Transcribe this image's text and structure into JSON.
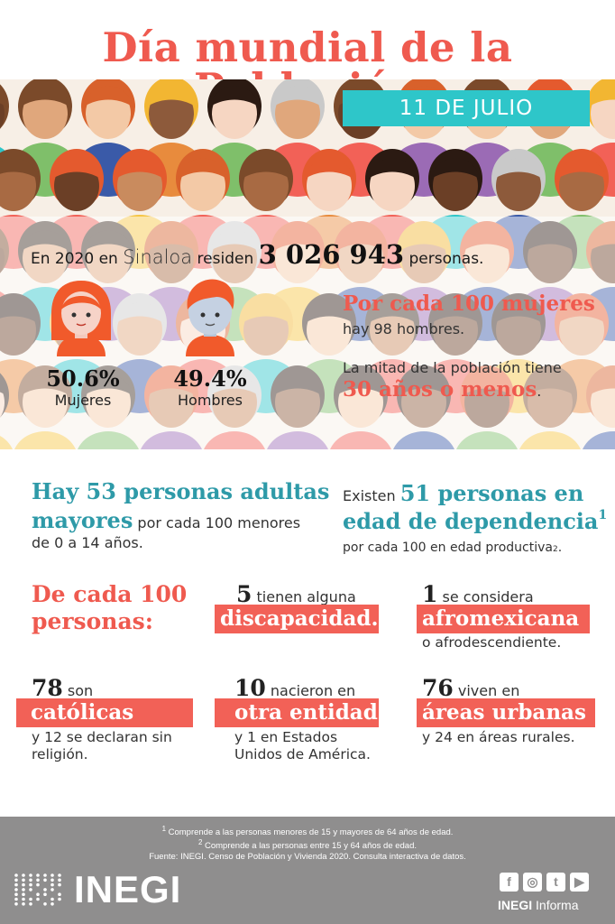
{
  "header": {
    "title": "Día mundial de la  Población",
    "date_banner": "11 DE JULIO"
  },
  "intro": {
    "prefix": "En 2020 en",
    "state": "Sinaloa",
    "middle": "residen",
    "population": "3 026 943",
    "suffix": "personas."
  },
  "gender": {
    "women_pct": "50.6%",
    "women_label": "Mujeres",
    "men_pct": "49.4%",
    "men_label": "Hombres"
  },
  "ratio": {
    "headline": "Por cada 100 mujeres",
    "detail": "hay 98 hombres."
  },
  "median_age": {
    "text": "La mitad de la población tiene",
    "highlight": "30 años o menos",
    "end": "."
  },
  "elderly": {
    "line1": "Hay 53 personas adultas",
    "line2_bold": "mayores",
    "line2_rest": "por cada 100 menores",
    "line3": "de 0 a 14  años."
  },
  "dependency": {
    "prefix": "Existen",
    "bold1": "51 personas en",
    "bold2": "edad de dependencia",
    "sup1": "1",
    "line3": "por cada 100 en edad productiva",
    "sup2": "2",
    "end": "."
  },
  "per100": {
    "heading1": "De cada 100",
    "heading2": "personas:",
    "disability_num": "5",
    "disability_text": "tienen alguna",
    "disability_bar": "discapacidad.",
    "afro_num": "1",
    "afro_text": "se considera",
    "afro_bar": "afromexicana",
    "afro_sub": "o afrodescendiente.",
    "catholic_num": "78",
    "catholic_text": "son",
    "catholic_bar": "católicas",
    "catholic_sub1": "y 12 se declaran sin",
    "catholic_sub2": "religión.",
    "born_num": "10",
    "born_text": "nacieron en",
    "born_bar": "otra entidad",
    "born_sub1": "y 1 en Estados",
    "born_sub2": "Unidos de América.",
    "urban_num": "76",
    "urban_text": "viven en",
    "urban_bar": "áreas urbanas",
    "urban_sub": "y 24 en áreas rurales."
  },
  "footer": {
    "note1_sup": "1",
    "note1": "Comprende a las personas menores de 15 y mayores de 64 años de edad.",
    "note2_sup": "2",
    "note2": "Comprende a las personas entre 15 y 64 años de edad.",
    "source": "Fuente: INEGI. Censo de Población y Vivienda 2020. Consulta interactiva de datos.",
    "logo": "INEGI",
    "brand_bold": "INEGI",
    "brand_rest": " Informa",
    "social_icons": [
      "facebook-icon",
      "instagram-icon",
      "twitter-icon",
      "youtube-icon"
    ],
    "social_glyphs": [
      "f",
      "◎",
      "t",
      "▶"
    ]
  },
  "colors": {
    "accent_red": "#ef5a4f",
    "teal": "#2e9aa8",
    "banner_teal": "#2ec6c9",
    "footer_gray": "#8f8e8e"
  }
}
